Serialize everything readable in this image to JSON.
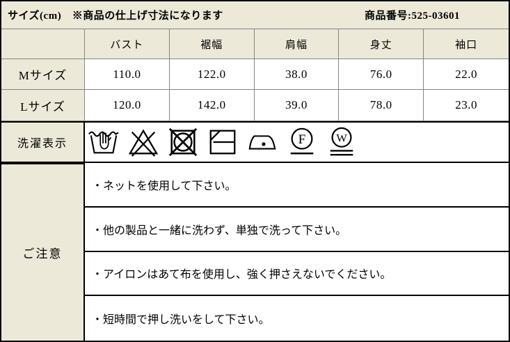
{
  "header": {
    "title": "サイズ(cm)　※商品の仕上げ寸法になります",
    "product_number": "商品番号:525-03601"
  },
  "size_table": {
    "columns": [
      "バスト",
      "裾幅",
      "肩幅",
      "身丈",
      "袖口"
    ],
    "rows": [
      {
        "label": "Mサイズ",
        "values": [
          "110.0",
          "122.0",
          "38.0",
          "76.0",
          "22.0"
        ]
      },
      {
        "label": "Lサイズ",
        "values": [
          "120.0",
          "142.0",
          "39.0",
          "78.0",
          "23.0"
        ]
      }
    ]
  },
  "care": {
    "label": "洗濯表示",
    "symbols": [
      "hand-wash-icon",
      "do-not-bleach-icon",
      "do-not-tumble-dry-icon",
      "flat-dry-in-shade-icon",
      "iron-low-heat-icon",
      "dry-clean-f-gentle-icon",
      "wet-clean-very-gentle-icon"
    ]
  },
  "notes": {
    "label": "ご注意",
    "items": [
      "・ネットを使用して下さい。",
      "・他の製品と一緒に洗わず、単独で洗って下さい。",
      "・アイロンはあて布を使用し、強く押さえないでください。",
      "・短時間で押し洗いをして下さい。"
    ]
  },
  "colors": {
    "label_beige": "#ECE9D8",
    "grid_gray": "#848484",
    "border_black": "#000000",
    "cell_white": "#FFFFFF"
  }
}
